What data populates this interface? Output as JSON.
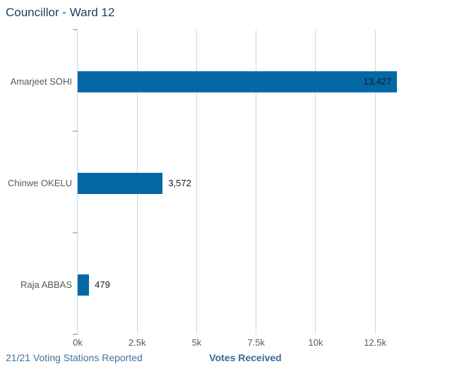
{
  "header": {
    "title": "Councillor - Ward 12"
  },
  "footer": {
    "stations_reported": "21/21 Voting Stations Reported"
  },
  "chart_data": {
    "type": "bar",
    "orientation": "horizontal",
    "title": "Councillor - Ward 12",
    "categories": [
      "Amarjeet SOHI",
      "Chinwe OKELU",
      "Raja ABBAS"
    ],
    "values": [
      13427,
      3572,
      479
    ],
    "value_labels": [
      "13,427",
      "3,572",
      "479"
    ],
    "xlabel": "Votes Received",
    "ylabel": "",
    "xlim": [
      0,
      14100
    ],
    "xticks": [
      0,
      2500,
      5000,
      7500,
      10000,
      12500
    ],
    "xtick_labels": [
      "0k",
      "2.5k",
      "5k",
      "7.5k",
      "10k",
      "12.5k"
    ],
    "grid": true,
    "legend": false,
    "bar_color": "#0568a6"
  },
  "colors": {
    "bar": "#0568a6",
    "title_text": "#1f3e5d",
    "axis_line": "#c7d5e8",
    "gridline": "#d6d6d6",
    "category_text": "#595959",
    "tick_text": "#595959",
    "value_text": "#1a1a1a",
    "footer_link_text": "#41719e",
    "xaxis_title_text": "#39689a",
    "background": "#ffffff"
  }
}
